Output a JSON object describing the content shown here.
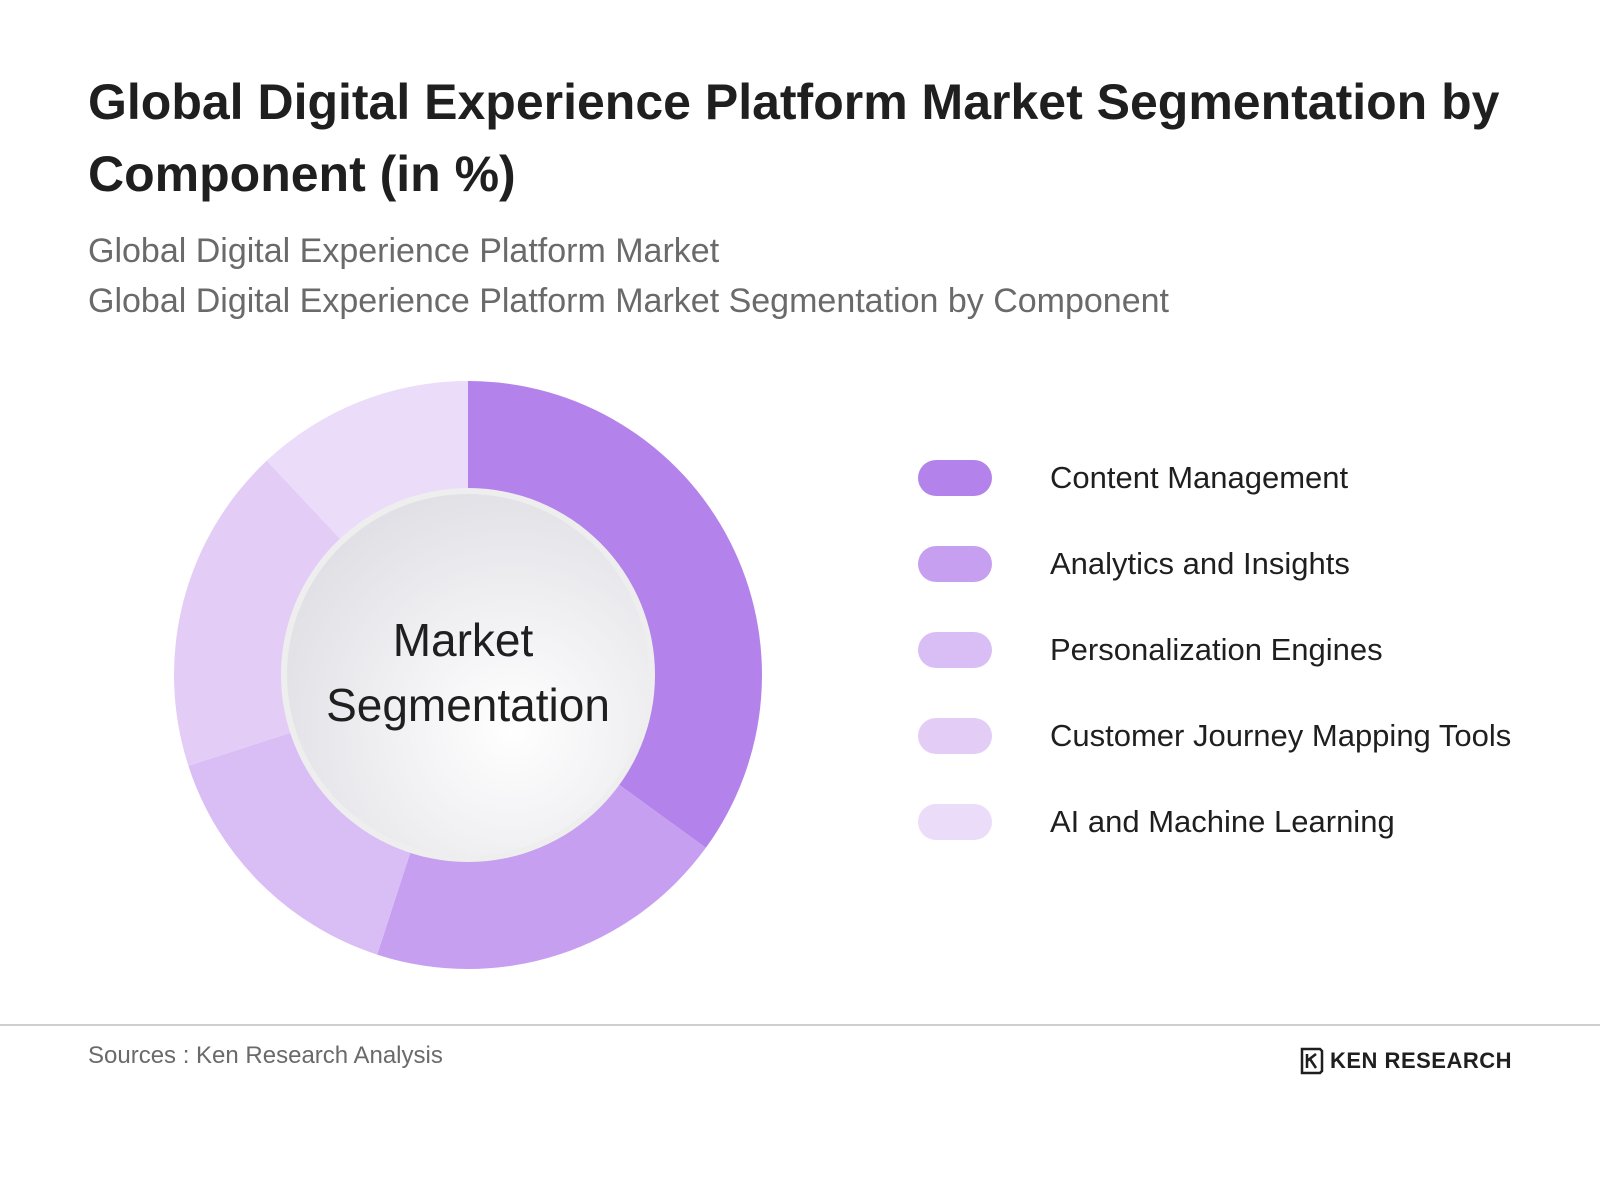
{
  "header": {
    "title": "Global Digital Experience Platform Market Segmentation by Component (in %)",
    "subtitle_line1": "Global Digital Experience Platform Market",
    "subtitle_line2": "Global Digital Experience Platform Market Segmentation by Component"
  },
  "chart_data": {
    "type": "pie",
    "title": "Global Digital Experience Platform Market Segmentation by Component (in %)",
    "center_label_line1": "Market",
    "center_label_line2": "Segmentation",
    "legend_position": "right",
    "categories": [
      "Content Management",
      "Analytics and Insights",
      "Personalization Engines",
      "Customer Journey Mapping Tools",
      "AI and Machine Learning"
    ],
    "values": [
      35,
      20,
      15,
      18,
      12
    ],
    "colors": [
      "#b383eb",
      "#c69ff0",
      "#d9bef6",
      "#e3cdf7",
      "#ebdcfa"
    ]
  },
  "footer": {
    "sources": "Sources : Ken Research Analysis",
    "brand": "KEN RESEARCH",
    "brand_icon": "ken-research-logo-icon"
  }
}
